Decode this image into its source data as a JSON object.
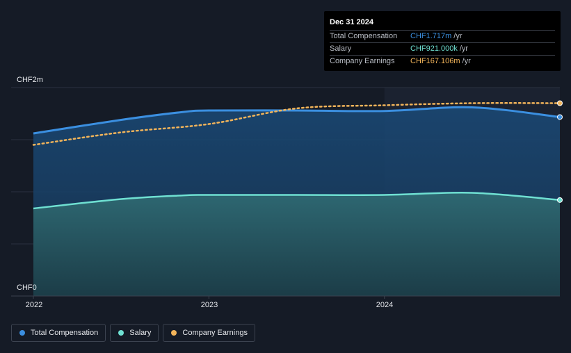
{
  "chart_data": {
    "type": "area",
    "y_axis": {
      "ticks": [
        {
          "label": "CHF2m",
          "value": 2000000
        },
        {
          "label": "CHF0",
          "value": 0
        }
      ],
      "ylim": [
        0,
        2000000
      ],
      "grid": true
    },
    "x_axis": {
      "ticks": [
        "2022",
        "2023",
        "2024"
      ],
      "xlim": [
        2022.0,
        2025.0
      ]
    },
    "series": [
      {
        "name": "Total Compensation",
        "color": "#3b8fe0",
        "style": "solid-area",
        "points": [
          [
            2022.0,
            1560000
          ],
          [
            2022.5,
            1690000
          ],
          [
            2022.85,
            1765000
          ],
          [
            2023.0,
            1780000
          ],
          [
            2023.5,
            1780000
          ],
          [
            2024.0,
            1775000
          ],
          [
            2024.5,
            1810000
          ],
          [
            2025.0,
            1717000
          ]
        ]
      },
      {
        "name": "Salary",
        "color": "#6fe0d2",
        "style": "solid-area",
        "points": [
          [
            2022.0,
            840000
          ],
          [
            2022.5,
            930000
          ],
          [
            2022.85,
            965000
          ],
          [
            2023.0,
            970000
          ],
          [
            2023.5,
            970000
          ],
          [
            2024.0,
            970000
          ],
          [
            2024.5,
            990000
          ],
          [
            2025.0,
            921000
          ]
        ]
      },
      {
        "name": "Company Earnings",
        "color": "#f2b45a",
        "style": "dotted-line",
        "unit_value": "CHF167.106m",
        "points": [
          [
            2022.0,
            1450000
          ],
          [
            2022.5,
            1570000
          ],
          [
            2023.0,
            1650000
          ],
          [
            2023.5,
            1800000
          ],
          [
            2024.0,
            1830000
          ],
          [
            2024.5,
            1850000
          ],
          [
            2025.0,
            1850000
          ]
        ]
      }
    ],
    "legend_placement": "bottom-left"
  },
  "tooltip": {
    "date": "Dec 31 2024",
    "rows": [
      {
        "label": "Total Compensation",
        "value": "CHF1.717m",
        "unit": "/yr",
        "color": "#3b8fe0"
      },
      {
        "label": "Salary",
        "value": "CHF921.000k",
        "unit": "/yr",
        "color": "#6fe0d2"
      },
      {
        "label": "Company Earnings",
        "value": "CHF167.106m",
        "unit": "/yr",
        "color": "#f2b45a"
      }
    ]
  },
  "legend": [
    {
      "label": "Total Compensation",
      "color": "#3b8fe0"
    },
    {
      "label": "Salary",
      "color": "#6fe0d2"
    },
    {
      "label": "Company Earnings",
      "color": "#f2b45a"
    }
  ]
}
